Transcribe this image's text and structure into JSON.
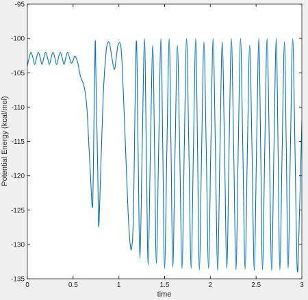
{
  "chart_data": {
    "type": "line",
    "xlabel": "time",
    "ylabel": "Potential Energy (kcal/mol)",
    "color": "#0072bd",
    "xlim": [
      0,
      3
    ],
    "ylim": [
      -135,
      -95
    ],
    "xticks": [
      0,
      0.5,
      1,
      1.5,
      2,
      2.5,
      3
    ],
    "yticks": [
      -95,
      -100,
      -105,
      -110,
      -115,
      -120,
      -125,
      -130,
      -135
    ],
    "x": [
      0,
      0.02,
      0.04,
      0.06,
      0.08,
      0.1,
      0.12,
      0.14,
      0.16,
      0.18,
      0.2,
      0.22,
      0.24,
      0.26,
      0.28,
      0.3,
      0.32,
      0.34,
      0.36,
      0.38,
      0.4,
      0.42,
      0.44,
      0.46,
      0.48,
      0.5,
      0.52,
      0.55,
      0.58,
      0.62,
      0.65,
      0.67,
      0.69,
      0.71,
      0.72,
      0.74,
      0.75,
      0.77,
      0.78,
      0.8,
      0.83,
      0.86,
      0.88,
      0.9,
      0.92,
      0.95,
      0.97,
      0.99,
      1.02,
      1.04,
      1.07,
      1.1,
      1.12,
      1.14,
      1.16,
      1.19,
      1.21,
      1.23,
      1.255,
      1.28,
      1.3,
      1.32,
      1.345,
      1.37,
      1.39,
      1.41,
      1.435,
      1.46,
      1.48,
      1.5,
      1.525,
      1.55,
      1.57,
      1.59,
      1.615,
      1.64,
      1.665,
      1.69,
      1.715,
      1.74,
      1.765,
      1.79,
      1.815,
      1.84,
      1.86,
      1.88,
      1.905,
      1.93,
      1.955,
      1.98,
      2.005,
      2.03,
      2.055,
      2.08,
      2.105,
      2.13,
      2.155,
      2.18,
      2.205,
      2.23,
      2.255,
      2.28,
      2.305,
      2.33,
      2.355,
      2.38,
      2.405,
      2.43,
      2.455,
      2.48,
      2.505,
      2.53,
      2.55,
      2.57,
      2.595,
      2.62,
      2.645,
      2.67,
      2.695,
      2.72,
      2.74,
      2.76,
      2.785,
      2.81,
      2.83,
      2.85,
      2.875,
      2.9,
      2.925,
      2.95,
      2.975,
      3.0
    ],
    "values": [
      -104,
      -102.8,
      -102,
      -102.8,
      -103.8,
      -102.8,
      -102,
      -102.8,
      -103.8,
      -102.8,
      -102,
      -102.8,
      -103.8,
      -102.8,
      -102,
      -102.8,
      -103.8,
      -102.8,
      -102,
      -102.8,
      -103.8,
      -102.8,
      -102,
      -102.8,
      -103.6,
      -103.2,
      -102.6,
      -103.5,
      -105.5,
      -107,
      -110,
      -115,
      -120,
      -124.7,
      -120,
      -101,
      -106,
      -120,
      -127.5,
      -120,
      -108,
      -102,
      -100.6,
      -100.8,
      -102.5,
      -104.5,
      -103,
      -101,
      -101,
      -105,
      -115,
      -125,
      -129.5,
      -130.5,
      -125,
      -100.5,
      -116,
      -132,
      -116,
      -100,
      -116,
      -133,
      -116,
      -101,
      -116,
      -132.8,
      -116,
      -100,
      -116,
      -133.5,
      -116,
      -100,
      -116,
      -133.3,
      -116,
      -101,
      -116,
      -133.5,
      -116,
      -100,
      -116,
      -133.5,
      -116,
      -100,
      -116,
      -133.7,
      -116,
      -100.5,
      -116,
      -133.5,
      -116,
      -100,
      -116,
      -133.8,
      -116,
      -100.5,
      -116,
      -133.5,
      -116,
      -100,
      -116,
      -133.7,
      -116,
      -100,
      -116,
      -133.6,
      -116,
      -101,
      -116,
      -133.8,
      -116,
      -100,
      -116,
      -133.7,
      -116,
      -100,
      -116,
      -133.8,
      -116,
      -100,
      -116,
      -133.7,
      -116,
      -100.5,
      -116,
      -133.5,
      -116,
      -100,
      -116,
      -133.8,
      -125,
      -112
    ]
  }
}
